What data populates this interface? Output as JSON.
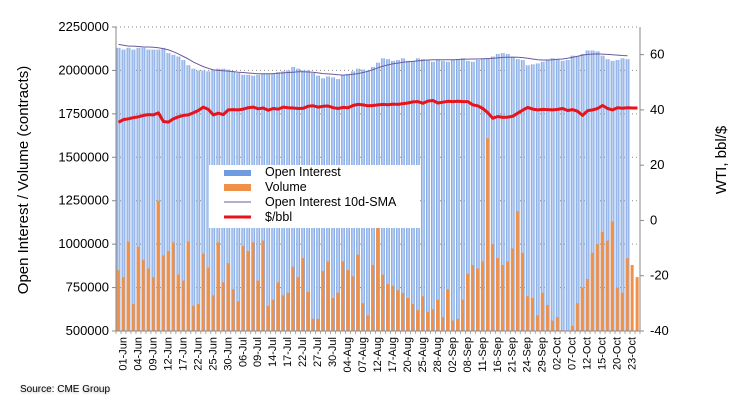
{
  "source_label": "Source: CME Group",
  "colors": {
    "open_interest": "#6f9be0",
    "open_interest_light": "#c9daf6",
    "volume": "#f0914a",
    "sma": "#6b5a9e",
    "price": "#e8141c",
    "grid": "#8a8a8a"
  },
  "chart_data": {
    "type": "bar",
    "title": "",
    "ylabel": "Open Interest / Volume (contracts)",
    "y2label": "WTI, bbl/$",
    "ylim": [
      500000,
      2250000
    ],
    "y2lim": [
      -40,
      70
    ],
    "yticks": [
      "500000",
      "750000",
      "1000000",
      "1250000",
      "1500000",
      "1750000",
      "2000000",
      "2250000"
    ],
    "y2ticks": [
      "-40",
      "-20",
      "0",
      "20",
      "40",
      "60"
    ],
    "grid": true,
    "legend_position": "center-left",
    "legend": [
      "Open Interest",
      "Volume",
      "Open Interest 10d-SMA",
      "$/bbl"
    ],
    "xtick_labels": [
      "01-Jun",
      "04-Jun",
      "09-Jun",
      "12-Jun",
      "17-Jun",
      "22-Jun",
      "25-Jun",
      "30-Jun",
      "06-Jul",
      "09-Jul",
      "14-Jul",
      "17-Jul",
      "22-Jul",
      "27-Jul",
      "30-Jul",
      "04-Aug",
      "07-Aug",
      "12-Aug",
      "17-Aug",
      "20-Aug",
      "25-Aug",
      "28-Aug",
      "02-Sep",
      "08-Sep",
      "11-Sep",
      "16-Sep",
      "21-Sep",
      "24-Sep",
      "29-Sep",
      "02-Oct",
      "07-Oct",
      "12-Oct",
      "15-Oct",
      "20-Oct",
      "23-Oct"
    ],
    "n_points": 105,
    "series": [
      {
        "name": "Open Interest",
        "type": "bar",
        "axis": "left",
        "values": [
          2130000,
          2120000,
          2130000,
          2120000,
          2130000,
          2130000,
          2120000,
          2120000,
          2120000,
          2130000,
          2100000,
          2090000,
          2080000,
          2060000,
          2030000,
          2010000,
          2000000,
          2000000,
          1995000,
          2005000,
          2010000,
          2010000,
          2005000,
          1995000,
          1985000,
          1975000,
          1975000,
          1970000,
          1975000,
          1980000,
          1980000,
          1985000,
          1990000,
          1995000,
          2000000,
          2020000,
          2010000,
          2000000,
          2000000,
          1985000,
          1970000,
          1955000,
          1965000,
          1960000,
          1950000,
          1975000,
          1980000,
          1995000,
          2010000,
          2005000,
          2000000,
          2020000,
          2045000,
          2070000,
          2065000,
          2055000,
          2060000,
          2070000,
          2055000,
          2055000,
          2070000,
          2065000,
          2060000,
          2050000,
          2060000,
          2055000,
          2050000,
          2060000,
          2065000,
          2070000,
          2055000,
          2050000,
          2060000,
          2065000,
          2070000,
          2080000,
          2095000,
          2100000,
          2095000,
          2075000,
          2065000,
          2060000,
          2030000,
          2035000,
          2040000,
          2050000,
          2060000,
          2070000,
          2065000,
          2055000,
          2060000,
          2085000,
          2080000,
          2095000,
          2115000,
          2115000,
          2110000,
          2085000,
          2065000,
          2055000,
          2060000,
          2070000,
          2065000,
          null,
          null
        ]
      },
      {
        "name": "Volume",
        "type": "bar",
        "axis": "left",
        "values": [
          850000,
          810000,
          1015000,
          655000,
          985000,
          910000,
          860000,
          810000,
          1250000,
          935000,
          960000,
          1010000,
          825000,
          790000,
          1015000,
          645000,
          655000,
          945000,
          865000,
          705000,
          1010000,
          780000,
          890000,
          740000,
          670000,
          990000,
          960000,
          1010000,
          790000,
          1020000,
          645000,
          680000,
          780000,
          705000,
          720000,
          870000,
          810000,
          920000,
          725000,
          570000,
          570000,
          845000,
          900000,
          690000,
          720000,
          900000,
          850000,
          815000,
          940000,
          660000,
          590000,
          880000,
          1110000,
          825000,
          770000,
          760000,
          735000,
          720000,
          690000,
          655000,
          620000,
          700000,
          610000,
          625000,
          680000,
          580000,
          740000,
          560000,
          570000,
          680000,
          830000,
          880000,
          860000,
          900000,
          1610000,
          1000000,
          920000,
          880000,
          900000,
          975000,
          1190000,
          950000,
          700000,
          690000,
          590000,
          720000,
          650000,
          560000,
          580000,
          505000,
          480000,
          530000,
          660000,
          750000,
          800000,
          950000,
          1000000,
          1070000,
          1020000,
          1130000,
          750000,
          720000,
          920000,
          880000,
          810000
        ]
      },
      {
        "name": "Open Interest 10d-SMA",
        "type": "line",
        "axis": "left",
        "values": [
          2150000,
          2145000,
          2140000,
          2140000,
          2138000,
          2135000,
          2135000,
          2133000,
          2130000,
          2125000,
          2118000,
          2108000,
          2095000,
          2080000,
          2065000,
          2048000,
          2035000,
          2022000,
          2012000,
          2003000,
          2000000,
          1998000,
          1996000,
          1993000,
          1990000,
          1988000,
          1985000,
          1983000,
          1981000,
          1981000,
          1981000,
          1982000,
          1984000,
          1986000,
          1988000,
          1990000,
          1992000,
          1992000,
          1991000,
          1989000,
          1986000,
          1982000,
          1980000,
          1978000,
          1975000,
          1973000,
          1975000,
          1978000,
          1982000,
          1988000,
          1995000,
          2005000,
          2015000,
          2025000,
          2032000,
          2038000,
          2042000,
          2047000,
          2050000,
          2052000,
          2055000,
          2058000,
          2060000,
          2062000,
          2062000,
          2062000,
          2062000,
          2062000,
          2063000,
          2064000,
          2065000,
          2066000,
          2066000,
          2067000,
          2068000,
          2070000,
          2072000,
          2075000,
          2076000,
          2077000,
          2076000,
          2074000,
          2070000,
          2066000,
          2062000,
          2060000,
          2060000,
          2062000,
          2064000,
          2066000,
          2070000,
          2076000,
          2082000,
          2088000,
          2092000,
          2094000,
          2095000,
          2094000,
          2092000,
          2090000,
          2088000,
          2086000,
          2085000,
          null,
          null
        ]
      },
      {
        "name": "$/bbl",
        "type": "line",
        "axis": "right",
        "values": [
          35.5,
          36.5,
          36.8,
          37.2,
          37.5,
          38.0,
          38.3,
          38.2,
          38.9,
          35.8,
          35.6,
          36.8,
          37.5,
          38.0,
          38.2,
          39.0,
          39.8,
          41.0,
          40.2,
          38.2,
          38.8,
          38.3,
          40.0,
          40.1,
          40.0,
          40.3,
          40.8,
          41.0,
          40.4,
          40.7,
          39.9,
          40.5,
          40.3,
          41.0,
          40.8,
          40.7,
          40.5,
          40.6,
          41.3,
          41.5,
          41.0,
          41.3,
          41.4,
          40.8,
          40.5,
          40.9,
          40.8,
          41.6,
          42.0,
          41.8,
          41.5,
          41.6,
          41.8,
          42.0,
          41.9,
          42.1,
          42.0,
          42.3,
          42.5,
          42.9,
          43.0,
          42.4,
          43.2,
          43.4,
          42.5,
          42.8,
          43.1,
          43.0,
          43.1,
          43.0,
          43.0,
          41.8,
          41.5,
          40.5,
          39.0,
          37.0,
          37.6,
          37.3,
          37.4,
          37.7,
          38.8,
          39.9,
          40.9,
          40.3,
          40.0,
          40.2,
          40.1,
          40.0,
          40.2,
          40.5,
          39.8,
          40.1,
          39.5,
          38.0,
          39.7,
          40.0,
          40.5,
          41.6,
          40.5,
          40.0,
          40.8,
          40.6,
          40.8,
          40.7,
          40.7
        ]
      }
    ]
  }
}
